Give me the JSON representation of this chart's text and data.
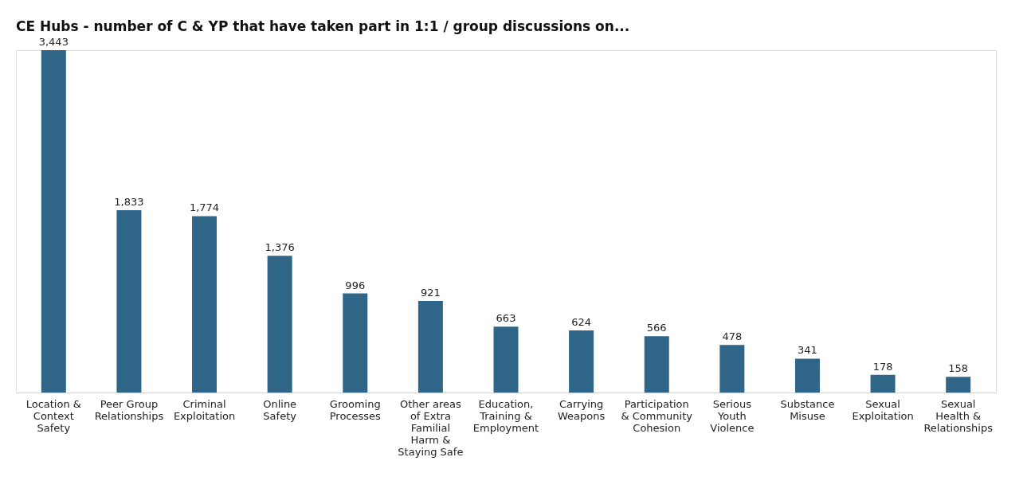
{
  "chart_data": {
    "type": "bar",
    "title": "CE Hubs - number of C & YP that have taken part in 1:1 / group discussions on...",
    "categories": [
      "Location & Context Safety",
      "Peer Group Relationships",
      "Criminal Exploitation",
      "Online Safety",
      "Grooming Processes",
      "Other areas of Extra Familial Harm & Staying Safe",
      "Education, Training & Employment",
      "Carrying Weapons",
      "Participation & Community Cohesion",
      "Serious Youth Violence",
      "Substance Misuse",
      "Sexual Exploitation",
      "Sexual Health & Relationships"
    ],
    "values": [
      3443,
      1833,
      1774,
      1376,
      996,
      921,
      663,
      624,
      566,
      478,
      341,
      178,
      158
    ],
    "value_labels": [
      "3,443",
      "1,833",
      "1,774",
      "1,376",
      "996",
      "921",
      "663",
      "624",
      "566",
      "478",
      "341",
      "178",
      "158"
    ],
    "color": "#2f6688",
    "grid": false
  }
}
